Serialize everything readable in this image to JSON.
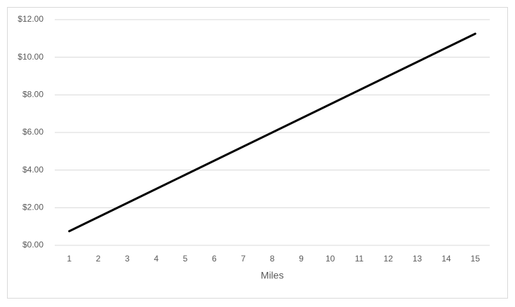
{
  "chart_data": {
    "type": "line",
    "x_label": "Miles",
    "x": [
      1,
      2,
      3,
      4,
      5,
      6,
      7,
      8,
      9,
      10,
      11,
      12,
      13,
      14,
      15
    ],
    "series": [
      {
        "color": "#000000",
        "values": [
          0.75,
          1.5,
          2.25,
          3,
          3.75,
          4.5,
          5.25,
          6,
          6.75,
          7.5,
          8.25,
          9,
          9.75,
          10.5,
          11.25
        ]
      }
    ],
    "ylim": [
      0,
      12
    ],
    "yticks": [
      {
        "value": 0,
        "label": "$0.00"
      },
      {
        "value": 2,
        "label": "$2.00"
      },
      {
        "value": 4,
        "label": "$4.00"
      },
      {
        "value": 6,
        "label": "$6.00"
      },
      {
        "value": 8,
        "label": "$8.00"
      },
      {
        "value": 10,
        "label": "$10.00"
      },
      {
        "value": 12,
        "label": "$12.00"
      }
    ],
    "grid": true
  }
}
